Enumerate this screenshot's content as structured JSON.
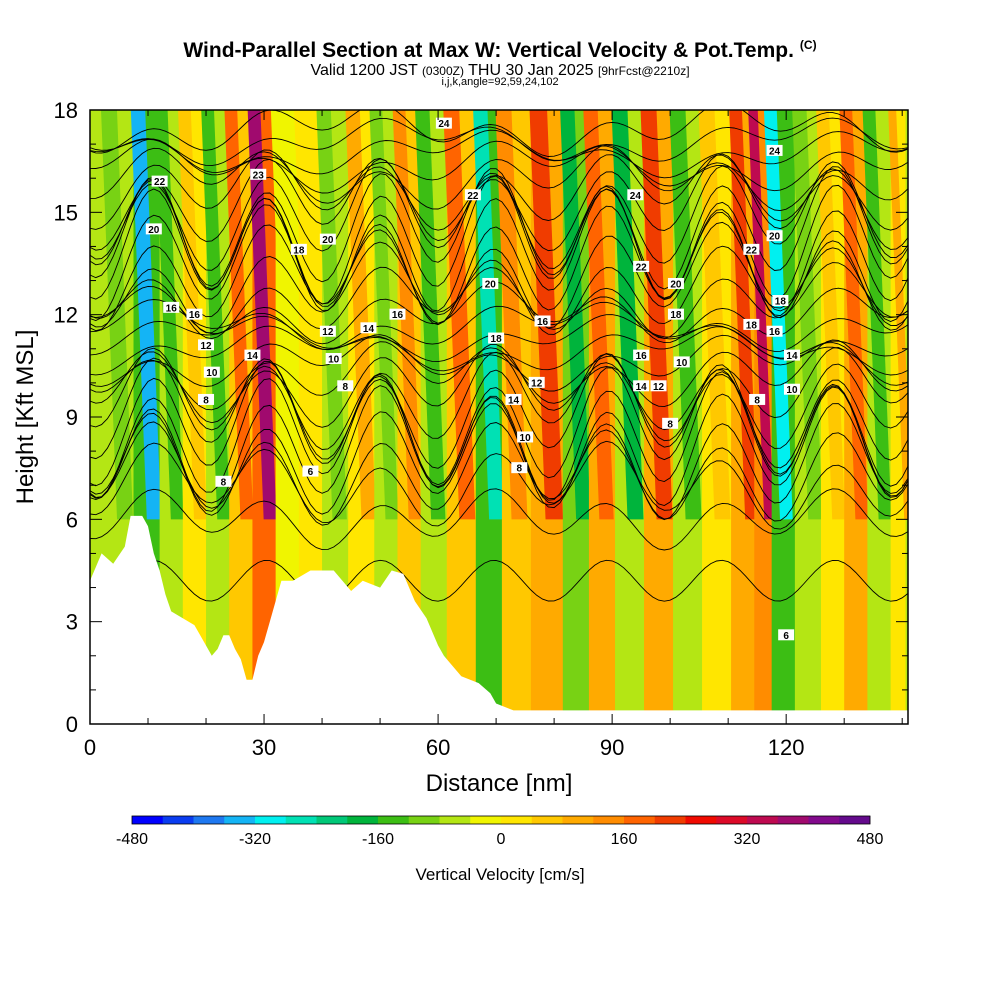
{
  "header": {
    "title": "Wind-Parallel Section at Max W: Vertical Velocity & Pot.Temp.",
    "copyright": "(C)",
    "valid_prefix": "Valid 1200 JST",
    "valid_utc": "(0300Z)",
    "valid_date": "THU 30 Jan 2025",
    "forecast": "[9hrFcst@2210z]",
    "params": "i,j,k,angle=92,59,24,102"
  },
  "chart_data": {
    "type": "heatmap",
    "xlabel": "Distance [nm]",
    "ylabel": "Height [Kft MSL]",
    "xlim": [
      0,
      141
    ],
    "ylim": [
      0,
      18
    ],
    "x_ticks": [
      "0",
      "30",
      "60",
      "90",
      "120"
    ],
    "y_ticks": [
      "0",
      "3",
      "6",
      "9",
      "12",
      "15",
      "18"
    ],
    "colorbar": {
      "title": "Vertical Velocity [cm/s]",
      "range": [
        -480,
        480
      ],
      "tick_labels": [
        "-480",
        "-320",
        "-160",
        "0",
        "160",
        "320",
        "480"
      ],
      "colors": [
        "#0000ff",
        "#0a3cf0",
        "#1e78f0",
        "#14b4f5",
        "#00f0f0",
        "#00e1b4",
        "#00c878",
        "#00b43c",
        "#3cbe14",
        "#78d214",
        "#b4e614",
        "#f0f500",
        "#ffe600",
        "#ffc800",
        "#ffaa00",
        "#ff8c00",
        "#ff6400",
        "#f03c00",
        "#f00a00",
        "#dc0a28",
        "#be0a50",
        "#a00a6e",
        "#820a8c",
        "#640a8c"
      ]
    },
    "terrain_profile_kft": [
      [
        0,
        4.2
      ],
      [
        1,
        4.6
      ],
      [
        2,
        5.0
      ],
      [
        4,
        4.7
      ],
      [
        6,
        5.2
      ],
      [
        7,
        6.1
      ],
      [
        9,
        6.1
      ],
      [
        10,
        5.8
      ],
      [
        11,
        5.0
      ],
      [
        12,
        4.5
      ],
      [
        13,
        3.8
      ],
      [
        14,
        3.3
      ],
      [
        16,
        3.1
      ],
      [
        18,
        2.9
      ],
      [
        19,
        2.6
      ],
      [
        20,
        2.3
      ],
      [
        21,
        2.0
      ],
      [
        22,
        2.2
      ],
      [
        23,
        2.6
      ],
      [
        24,
        2.6
      ],
      [
        25,
        2.2
      ],
      [
        26,
        1.9
      ],
      [
        27,
        1.3
      ],
      [
        28,
        1.3
      ],
      [
        29,
        2.0
      ],
      [
        30,
        2.4
      ],
      [
        31,
        3.0
      ],
      [
        32,
        3.6
      ],
      [
        33,
        4.2
      ],
      [
        35,
        4.2
      ],
      [
        38,
        4.5
      ],
      [
        42,
        4.5
      ],
      [
        45,
        3.9
      ],
      [
        47,
        4.2
      ],
      [
        50,
        4.0
      ],
      [
        52,
        4.5
      ],
      [
        54,
        4.4
      ],
      [
        56,
        3.6
      ],
      [
        58,
        3.1
      ],
      [
        59,
        2.7
      ],
      [
        60,
        2.3
      ],
      [
        61,
        2.0
      ],
      [
        62,
        1.8
      ],
      [
        64,
        1.4
      ],
      [
        67,
        1.2
      ],
      [
        69,
        0.9
      ],
      [
        70,
        0.6
      ],
      [
        73,
        0.4
      ],
      [
        141,
        0.4
      ]
    ],
    "bands_x_nm": [
      {
        "x": 5,
        "w": -120
      },
      {
        "x": 10,
        "w": -330
      },
      {
        "x": 14,
        "w": -150
      },
      {
        "x": 18,
        "w": 60
      },
      {
        "x": 22,
        "w": -140
      },
      {
        "x": 26,
        "w": 170
      },
      {
        "x": 30,
        "w": 360
      },
      {
        "x": 34,
        "w": -40
      },
      {
        "x": 38,
        "w": 30
      },
      {
        "x": 42,
        "w": -100
      },
      {
        "x": 47,
        "w": 80
      },
      {
        "x": 51,
        "w": -90
      },
      {
        "x": 55,
        "w": 140
      },
      {
        "x": 59,
        "w": -150
      },
      {
        "x": 64,
        "w": 170
      },
      {
        "x": 69,
        "w": -280
      },
      {
        "x": 73,
        "w": 120
      },
      {
        "x": 79,
        "w": 200
      },
      {
        "x": 84,
        "w": -180
      },
      {
        "x": 88,
        "w": 180
      },
      {
        "x": 93,
        "w": -170
      },
      {
        "x": 98,
        "w": 230
      },
      {
        "x": 103,
        "w": -150
      },
      {
        "x": 108,
        "w": 60
      },
      {
        "x": 113,
        "w": 230
      },
      {
        "x": 116,
        "w": 350
      },
      {
        "x": 119,
        "w": -310
      },
      {
        "x": 124,
        "w": -120
      },
      {
        "x": 128,
        "w": 40
      },
      {
        "x": 132,
        "w": 190
      },
      {
        "x": 136,
        "w": -150
      },
      {
        "x": 140,
        "w": 80
      }
    ],
    "contour_labels": [
      {
        "text": "22",
        "x": 12,
        "y": 15.9
      },
      {
        "text": "20",
        "x": 11,
        "y": 14.5
      },
      {
        "text": "16",
        "x": 14,
        "y": 12.2
      },
      {
        "text": "16",
        "x": 18,
        "y": 12.0
      },
      {
        "text": "12",
        "x": 20,
        "y": 11.1
      },
      {
        "text": "10",
        "x": 21,
        "y": 10.3
      },
      {
        "text": "8",
        "x": 20,
        "y": 9.5
      },
      {
        "text": "8",
        "x": 23,
        "y": 7.1
      },
      {
        "text": "23",
        "x": 29,
        "y": 16.1
      },
      {
        "text": "14",
        "x": 28,
        "y": 10.8
      },
      {
        "text": "18",
        "x": 36,
        "y": 13.9
      },
      {
        "text": "20",
        "x": 41,
        "y": 14.2
      },
      {
        "text": "12",
        "x": 41,
        "y": 11.5
      },
      {
        "text": "10",
        "x": 42,
        "y": 10.7
      },
      {
        "text": "8",
        "x": 44,
        "y": 9.9
      },
      {
        "text": "6",
        "x": 38,
        "y": 7.4
      },
      {
        "text": "14",
        "x": 48,
        "y": 11.6
      },
      {
        "text": "16",
        "x": 53,
        "y": 12.0
      },
      {
        "text": "24",
        "x": 61,
        "y": 17.6
      },
      {
        "text": "22",
        "x": 66,
        "y": 15.5
      },
      {
        "text": "20",
        "x": 69,
        "y": 12.9
      },
      {
        "text": "18",
        "x": 70,
        "y": 11.3
      },
      {
        "text": "16",
        "x": 78,
        "y": 11.8
      },
      {
        "text": "12",
        "x": 77,
        "y": 10.0
      },
      {
        "text": "14",
        "x": 73,
        "y": 9.5
      },
      {
        "text": "10",
        "x": 75,
        "y": 8.4
      },
      {
        "text": "8",
        "x": 74,
        "y": 7.5
      },
      {
        "text": "24",
        "x": 94,
        "y": 15.5
      },
      {
        "text": "22",
        "x": 95,
        "y": 13.4
      },
      {
        "text": "20",
        "x": 101,
        "y": 12.9
      },
      {
        "text": "18",
        "x": 101,
        "y": 12.0
      },
      {
        "text": "16",
        "x": 95,
        "y": 10.8
      },
      {
        "text": "14",
        "x": 95,
        "y": 9.9
      },
      {
        "text": "12",
        "x": 98,
        "y": 9.9
      },
      {
        "text": "10",
        "x": 102,
        "y": 10.6
      },
      {
        "text": "8",
        "x": 100,
        "y": 8.8
      },
      {
        "text": "24",
        "x": 118,
        "y": 16.8
      },
      {
        "text": "22",
        "x": 114,
        "y": 13.9
      },
      {
        "text": "20",
        "x": 118,
        "y": 14.3
      },
      {
        "text": "18",
        "x": 114,
        "y": 11.7
      },
      {
        "text": "18",
        "x": 119,
        "y": 12.4
      },
      {
        "text": "16",
        "x": 118,
        "y": 11.5
      },
      {
        "text": "14",
        "x": 121,
        "y": 10.8
      },
      {
        "text": "10",
        "x": 121,
        "y": 9.8
      },
      {
        "text": "8",
        "x": 115,
        "y": 9.5
      },
      {
        "text": "6",
        "x": 120,
        "y": 2.6
      }
    ]
  }
}
